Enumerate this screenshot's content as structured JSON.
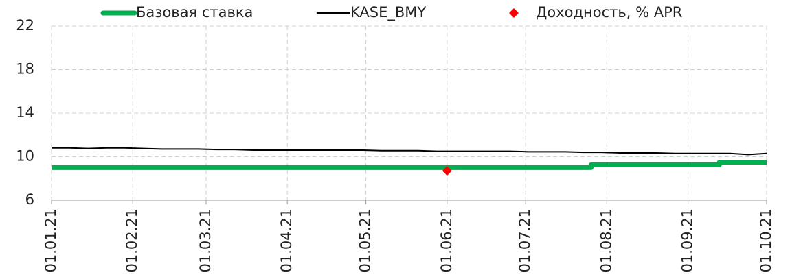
{
  "chart_data": {
    "type": "line",
    "xlim": [
      "01.01.21",
      "01.10.21"
    ],
    "xticks": [
      "01.01.21",
      "01.02.21",
      "01.03.21",
      "01.04.21",
      "01.05.21",
      "01.06.21",
      "01.07.21",
      "01.08.21",
      "01.09.21",
      "01.10.21"
    ],
    "ylim": [
      6,
      22
    ],
    "yticks": [
      6,
      10,
      14,
      18,
      22
    ],
    "grid": true,
    "legend": "top",
    "series": [
      {
        "name": "Базовая ставка",
        "color": "#00b050",
        "step": true,
        "x": [
          "01.01.21",
          "26.07.21",
          "13.09.21",
          "01.10.21"
        ],
        "values": [
          9,
          9.25,
          9.5,
          9.5
        ]
      },
      {
        "name": "KASE_BMY",
        "color": "#000000",
        "x": [
          "01.01.21",
          "08.01.21",
          "15.01.21",
          "22.01.21",
          "29.01.21",
          "05.02.21",
          "12.02.21",
          "19.02.21",
          "26.02.21",
          "05.03.21",
          "12.03.21",
          "19.03.21",
          "26.03.21",
          "02.04.21",
          "09.04.21",
          "16.04.21",
          "23.04.21",
          "30.04.21",
          "07.05.21",
          "14.05.21",
          "21.05.21",
          "28.05.21",
          "04.06.21",
          "11.06.21",
          "18.06.21",
          "25.06.21",
          "02.07.21",
          "09.07.21",
          "16.07.21",
          "23.07.21",
          "30.07.21",
          "06.08.21",
          "13.08.21",
          "20.08.21",
          "27.08.21",
          "03.09.21",
          "10.09.21",
          "17.09.21",
          "24.09.21",
          "01.10.21"
        ],
        "values": [
          10.8,
          10.8,
          10.75,
          10.8,
          10.8,
          10.75,
          10.7,
          10.7,
          10.7,
          10.65,
          10.65,
          10.6,
          10.6,
          10.6,
          10.6,
          10.6,
          10.6,
          10.6,
          10.55,
          10.55,
          10.55,
          10.5,
          10.5,
          10.5,
          10.5,
          10.5,
          10.45,
          10.45,
          10.45,
          10.4,
          10.4,
          10.35,
          10.35,
          10.35,
          10.3,
          10.3,
          10.3,
          10.3,
          10.2,
          10.3
        ]
      },
      {
        "name": "Доходность, % APR",
        "color": "#ff0000",
        "marker": "diamond",
        "x": [
          "01.06.21"
        ],
        "values": [
          8.7
        ]
      }
    ]
  }
}
